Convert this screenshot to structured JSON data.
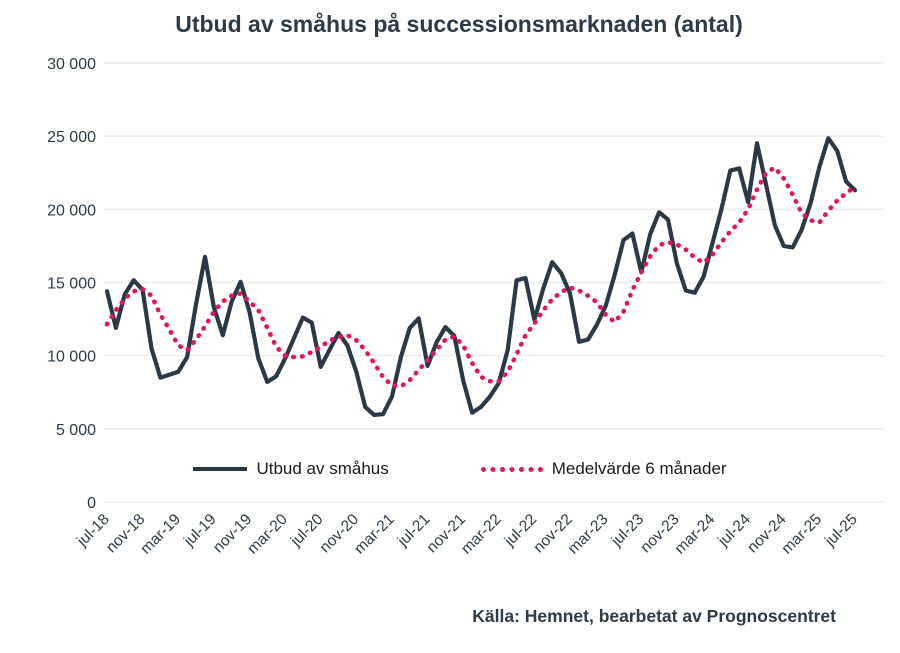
{
  "source": "Källa: Hemnet, bearbetat av Prognoscentret",
  "colors_note": {
    "accent_dark": "#2a3847",
    "accent_pink": "#e0175c"
  },
  "chart_data": {
    "type": "line",
    "title": "Utbud av småhus på successionsmarknaden (antal)",
    "xlabel": "",
    "ylabel": "",
    "ylim": [
      0,
      30000
    ],
    "grid": "horizontal",
    "legend_position": "bottom-inside",
    "colors": {
      "grid": "#ebebeb",
      "text": "#2d3b49"
    },
    "y_ticks": [
      {
        "value": 0,
        "label": "0"
      },
      {
        "value": 5000,
        "label": "5 000"
      },
      {
        "value": 10000,
        "label": "10 000"
      },
      {
        "value": 15000,
        "label": "15 000"
      },
      {
        "value": 20000,
        "label": "20 000"
      },
      {
        "value": 25000,
        "label": "25 000"
      },
      {
        "value": 30000,
        "label": "30 000"
      }
    ],
    "x": {
      "tick_labels": [
        "jul-18",
        "nov-18",
        "mar-19",
        "jul-19",
        "nov-19",
        "mar-20",
        "jul-20",
        "nov-20",
        "mar-21",
        "jul-21",
        "nov-21",
        "mar-22",
        "jul-22",
        "nov-22",
        "mar-23",
        "jul-23",
        "nov-23",
        "mar-24",
        "jul-24",
        "nov-24",
        "mar-25",
        "jul-25"
      ],
      "months_per_tick": 4,
      "total_months": 85
    },
    "series": [
      {
        "name": "Utbud av småhus",
        "data_name": "utbud-line",
        "style": "solid",
        "color": "#2a3847",
        "values": [
          14400,
          11900,
          14200,
          15150,
          14500,
          10500,
          8500,
          8700,
          8900,
          9900,
          13500,
          16750,
          13300,
          11400,
          13700,
          15050,
          13000,
          9800,
          8200,
          8600,
          9800,
          11200,
          12600,
          12250,
          9230,
          10400,
          11550,
          10700,
          8900,
          6500,
          5950,
          6000,
          7200,
          9910,
          11900,
          12550,
          9300,
          10900,
          11950,
          11350,
          8300,
          6100,
          6500,
          7200,
          8130,
          10380,
          15150,
          15300,
          12450,
          14600,
          16390,
          15640,
          14270,
          10950,
          11100,
          12100,
          13400,
          15500,
          17900,
          18350,
          15700,
          18300,
          19800,
          19300,
          16300,
          14450,
          14300,
          15400,
          17700,
          20000,
          22650,
          22800,
          20500,
          24520,
          21700,
          18900,
          17500,
          17400,
          18600,
          20400,
          22900,
          24860,
          24000,
          21900,
          21300
        ]
      },
      {
        "name": "Medelvärde 6 månader",
        "data_name": "medelvarde-line",
        "style": "dotted",
        "color": "#e0175c",
        "values": [
          12150,
          13100,
          13900,
          14400,
          14550,
          14100,
          12800,
          11800,
          10700,
          10380,
          11100,
          12000,
          13000,
          13700,
          14100,
          14250,
          13700,
          13100,
          11900,
          10600,
          10000,
          9900,
          9950,
          10250,
          10600,
          11050,
          11270,
          11400,
          11050,
          10380,
          9490,
          8540,
          7950,
          7900,
          8330,
          9020,
          9700,
          10380,
          11100,
          11300,
          10700,
          9500,
          8550,
          8250,
          8250,
          8900,
          10100,
          11400,
          12200,
          13100,
          13850,
          14350,
          14650,
          14450,
          14100,
          13650,
          12800,
          12300,
          13000,
          14480,
          15700,
          16800,
          17550,
          17750,
          17600,
          17250,
          16700,
          16350,
          16900,
          17750,
          18500,
          19100,
          20000,
          21350,
          22500,
          22850,
          22100,
          21000,
          19750,
          19250,
          19100,
          19900,
          20600,
          21100,
          21550
        ]
      }
    ]
  }
}
